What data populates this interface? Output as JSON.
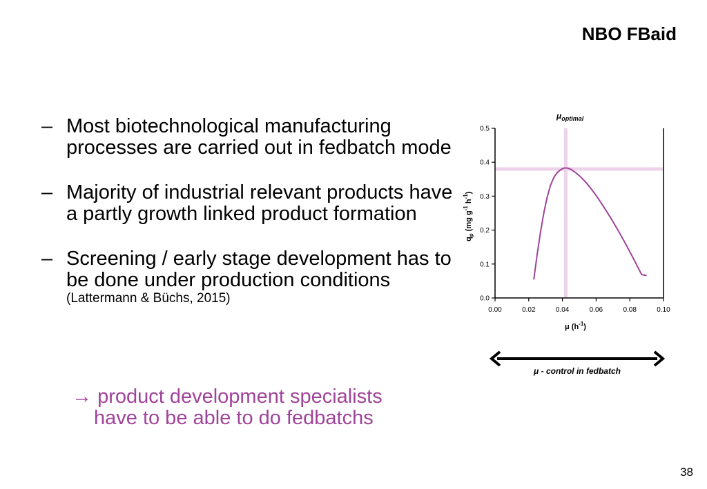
{
  "header": {
    "brand": "NBO FBaid"
  },
  "bullets": [
    {
      "marker": "–",
      "text": "Most biotechnological manufacturing processes are carried out in fedbatch mode"
    },
    {
      "marker": "–",
      "text": "Majority of industrial relevant products have a partly growth linked product formation"
    },
    {
      "marker": "–",
      "text": "Screening / early stage development has to be done under production conditions",
      "citation": "(Lattermann & Büchs, 2015)"
    }
  ],
  "conclusion": {
    "arrow": "→",
    "line1": "product development specialists",
    "line2": "have to be able to do fedbatchs"
  },
  "footer": {
    "page_number": "38"
  },
  "colors": {
    "curve": "#a0439a",
    "highlight": "#ecd3e9",
    "conclusion": "#a0439a"
  },
  "chart_data": {
    "type": "line",
    "top_label": {
      "main": "μ",
      "sub": "optimal"
    },
    "xlabel": {
      "main": "μ (h",
      "sup": "-1",
      "end": ")"
    },
    "ylabel": {
      "main": "q",
      "sub": "p",
      "unit": "(mg g",
      "sup1": "-1",
      "h": "h",
      "sup2": "-1",
      "end": ")"
    },
    "xlim": [
      0,
      0.1
    ],
    "ylim": [
      0,
      0.5
    ],
    "xticks": [
      "0.00",
      "0.02",
      "0.04",
      "0.06",
      "0.08",
      "0.10"
    ],
    "yticks": [
      "0.0",
      "0.1",
      "0.2",
      "0.3",
      "0.4",
      "0.5"
    ],
    "optimum": {
      "x": 0.042,
      "y": 0.38
    },
    "series": [
      {
        "x": [
          0.023,
          0.025,
          0.027,
          0.029,
          0.031,
          0.033,
          0.035,
          0.037,
          0.039,
          0.041,
          0.043,
          0.045,
          0.048,
          0.051,
          0.054,
          0.057,
          0.06,
          0.063,
          0.066,
          0.069,
          0.072,
          0.075,
          0.078,
          0.081,
          0.084,
          0.087,
          0.09
        ],
        "y": [
          0.054,
          0.128,
          0.195,
          0.252,
          0.298,
          0.333,
          0.356,
          0.37,
          0.378,
          0.383,
          0.383,
          0.379,
          0.369,
          0.356,
          0.34,
          0.322,
          0.302,
          0.28,
          0.257,
          0.233,
          0.208,
          0.182,
          0.155,
          0.127,
          0.098,
          0.069,
          0.066
        ]
      }
    ],
    "annotation": "μ - control in fedbatch"
  }
}
